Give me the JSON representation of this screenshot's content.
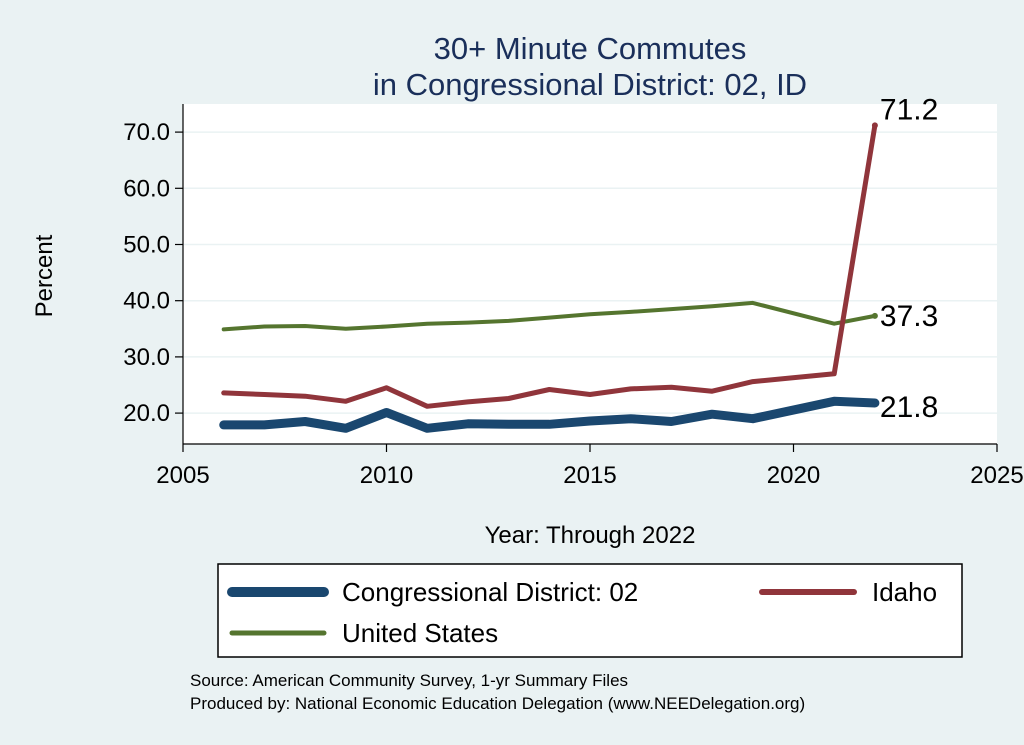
{
  "chart_data": {
    "type": "line",
    "title": "30+ Minute Commutes",
    "subtitle": "in Congressional District:  02, ID",
    "xlabel": "Year: Through 2022",
    "ylabel": "Percent",
    "xlim": [
      2005,
      2025
    ],
    "ylim": [
      14.5,
      75
    ],
    "xticks": [
      2005,
      2010,
      2015,
      2020,
      2025
    ],
    "yticks": [
      20,
      30,
      40,
      50,
      60,
      70
    ],
    "ytick_labels": [
      "20.0",
      "30.0",
      "40.0",
      "50.0",
      "60.0",
      "70.0"
    ],
    "grid": true,
    "legend_position": "bottom",
    "x": [
      2006,
      2007,
      2008,
      2009,
      2010,
      2011,
      2012,
      2013,
      2014,
      2015,
      2016,
      2017,
      2018,
      2019,
      2021,
      2022
    ],
    "series": [
      {
        "name": "Congressional District:  02",
        "color": "#1a476f",
        "values": [
          17.9,
          17.9,
          18.5,
          17.3,
          20.1,
          17.3,
          18.1,
          18.0,
          18.0,
          18.6,
          19.0,
          18.5,
          19.8,
          19.0,
          22.1,
          21.8
        ],
        "end_label": "21.8"
      },
      {
        "name": "Idaho",
        "color": "#90353b",
        "values": [
          23.6,
          23.3,
          23.0,
          22.1,
          24.5,
          21.2,
          22.0,
          22.6,
          24.2,
          23.3,
          24.3,
          24.6,
          23.9,
          25.6,
          27.0,
          71.2
        ],
        "end_label": "71.2"
      },
      {
        "name": "United States",
        "color": "#55752f",
        "values": [
          34.9,
          35.4,
          35.5,
          35.0,
          35.4,
          35.9,
          36.1,
          36.4,
          37.0,
          37.6,
          38.0,
          38.5,
          39.0,
          39.6,
          35.9,
          37.3
        ],
        "end_label": "37.3"
      }
    ]
  },
  "notes": {
    "source": "Source: American Community Survey, 1-yr Summary Files",
    "produced": "Produced by: National Economic Education Delegation (www.NEEDelegation.org)"
  }
}
